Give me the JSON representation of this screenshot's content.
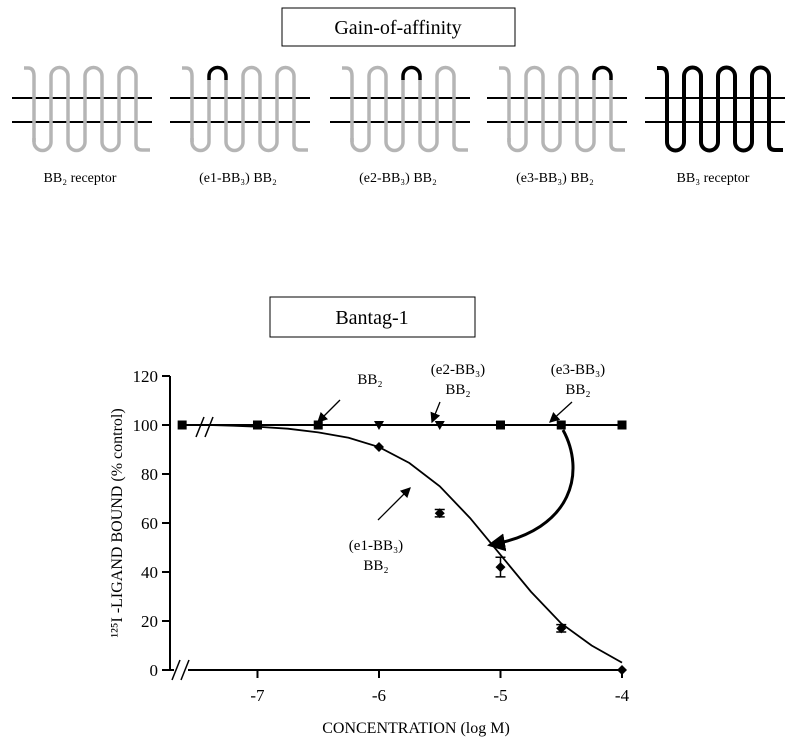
{
  "diagram": {
    "title": "Gain-of-affinity",
    "receptors": [
      "BB₂ receptor",
      "(e1-BB₃) BB₂",
      "(e2-BB₃) BB₂",
      "(e3-BB₃) BB₂",
      "BB₃ receptor"
    ]
  },
  "chart_data": {
    "type": "scatter",
    "title": "Bantag-1",
    "xlabel": "CONCENTRATION (log M)",
    "ylabel": "¹²⁵I -LIGAND BOUND (% control)",
    "xlim": [
      -7.72,
      -4
    ],
    "xticks": [
      -7,
      -6,
      -5,
      -4
    ],
    "ylim": [
      0,
      120
    ],
    "yticks": [
      0,
      20,
      40,
      60,
      80,
      100,
      120
    ],
    "series": [
      {
        "marker": "square",
        "color": "#000000",
        "line": true,
        "x": [
          -7.62,
          -7,
          -6.5,
          -5,
          -4.5,
          -4
        ],
        "values": [
          100,
          100,
          100,
          100,
          100,
          100
        ]
      },
      {
        "marker": "triangle",
        "color": "#000000",
        "line": false,
        "x": [
          -6,
          -5.5
        ],
        "values": [
          100,
          100
        ]
      },
      {
        "marker": "diamond",
        "color": "#000000",
        "line": false,
        "x": [
          -6,
          -5.5,
          -5,
          -4.5,
          -4
        ],
        "values": [
          91,
          64,
          42,
          17,
          0
        ],
        "errors": [
          null,
          1.5,
          4,
          1.5,
          null
        ]
      }
    ],
    "curve": {
      "color": "#000000",
      "x": [
        -7.4,
        -7.2,
        -7,
        -6.75,
        -6.5,
        -6.25,
        -6,
        -5.75,
        -5.5,
        -5.25,
        -5,
        -4.75,
        -4.5,
        -4.25,
        -4
      ],
      "values": [
        100,
        99.7,
        99.3,
        98.5,
        97,
        94.8,
        91,
        84.5,
        75,
        62,
        47,
        32,
        19,
        10,
        3
      ]
    },
    "annotations": [
      [
        "BB₂"
      ],
      [
        "(e2-BB₃)",
        "BB₂"
      ],
      [
        "(e3-BB₃)",
        "BB₂"
      ],
      [
        "(e1-BB₃)",
        "BB₂"
      ]
    ]
  }
}
